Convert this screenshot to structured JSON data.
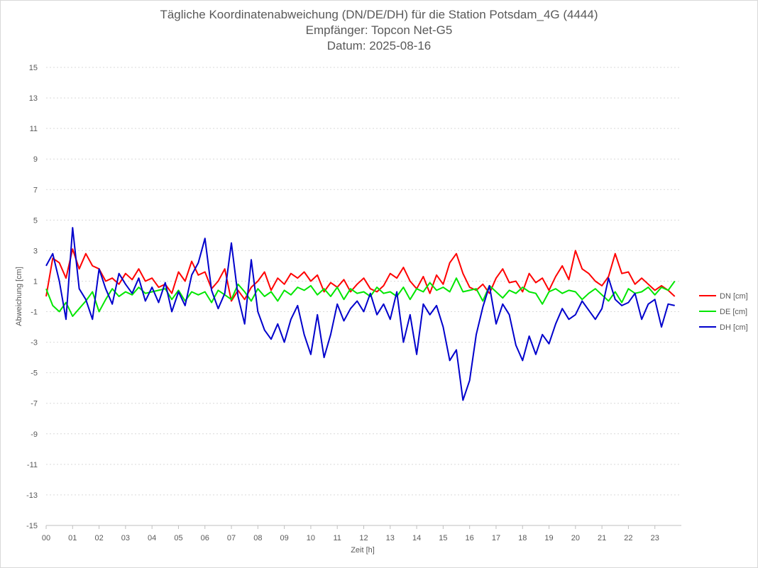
{
  "chart_data": {
    "type": "line",
    "title": [
      "Tägliche Koordinatenabweichung (DN/DE/DH) für die Station Potsdam_4G (4444)",
      "Empfänger: Topcon Net-G5",
      "Datum: 2025-08-16"
    ],
    "xlabel": "Zeit [h]",
    "ylabel": "Abweichung [cm]",
    "ylim": [
      -15,
      15
    ],
    "xlim": [
      0,
      24
    ],
    "x_ticks": [
      "00",
      "01",
      "02",
      "03",
      "04",
      "05",
      "06",
      "07",
      "08",
      "09",
      "10",
      "11",
      "12",
      "13",
      "14",
      "15",
      "16",
      "17",
      "18",
      "19",
      "20",
      "21",
      "22",
      "23"
    ],
    "y_ticks": [
      "15",
      "13",
      "11",
      "9",
      "7",
      "5",
      "3",
      "1",
      "-1",
      "-3",
      "-5",
      "-7",
      "-9",
      "-11",
      "-13",
      "-15"
    ],
    "grid": "horizontal dotted",
    "legend_position": "right",
    "series": [
      {
        "name": "DN [cm]",
        "color": "#ff0000",
        "x": [
          0,
          0.25,
          0.5,
          0.75,
          1,
          1.25,
          1.5,
          1.75,
          2,
          2.25,
          2.5,
          2.75,
          3,
          3.25,
          3.5,
          3.75,
          4,
          4.25,
          4.5,
          4.75,
          5,
          5.25,
          5.5,
          5.75,
          6,
          6.25,
          6.5,
          6.75,
          7,
          7.25,
          7.5,
          7.75,
          8,
          8.25,
          8.5,
          8.75,
          9,
          9.25,
          9.5,
          9.75,
          10,
          10.25,
          10.5,
          10.75,
          11,
          11.25,
          11.5,
          11.75,
          12,
          12.25,
          12.5,
          12.75,
          13,
          13.25,
          13.5,
          13.75,
          14,
          14.25,
          14.5,
          14.75,
          15,
          15.25,
          15.5,
          15.75,
          16,
          16.25,
          16.5,
          16.75,
          17,
          17.25,
          17.5,
          17.75,
          18,
          18.25,
          18.5,
          18.75,
          19,
          19.25,
          19.5,
          19.75,
          20,
          20.25,
          20.5,
          20.75,
          21,
          21.25,
          21.5,
          21.75,
          22,
          22.25,
          22.5,
          22.75,
          23,
          23.25,
          23.5,
          23.75
        ],
        "values": [
          0,
          2.5,
          2.2,
          1.2,
          3.1,
          1.8,
          2.8,
          2.0,
          1.8,
          1.0,
          1.2,
          0.8,
          1.5,
          1.1,
          1.8,
          1.0,
          1.2,
          0.6,
          0.8,
          0.2,
          1.6,
          1.0,
          2.3,
          1.4,
          1.6,
          0.5,
          1.0,
          1.8,
          -0.3,
          0.4,
          -0.2,
          0.6,
          1.0,
          1.6,
          0.4,
          1.2,
          0.8,
          1.5,
          1.2,
          1.6,
          1.0,
          1.4,
          0.3,
          0.9,
          0.6,
          1.1,
          0.3,
          0.8,
          1.2,
          0.5,
          0.3,
          0.7,
          1.5,
          1.2,
          1.9,
          1.0,
          0.5,
          1.3,
          0.2,
          1.4,
          0.8,
          2.2,
          2.8,
          1.5,
          0.6,
          0.4,
          0.8,
          0.2,
          1.2,
          1.8,
          0.9,
          1.0,
          0.3,
          1.5,
          0.9,
          1.2,
          0.4,
          1.3,
          2.0,
          1.1,
          3.0,
          1.8,
          1.5,
          1.0,
          0.7,
          1.3,
          2.8,
          1.5,
          1.6,
          0.8,
          1.2,
          0.8,
          0.4,
          0.7,
          0.4,
          0.0
        ]
      },
      {
        "name": "DE [cm]",
        "color": "#00e600",
        "x": [
          0,
          0.25,
          0.5,
          0.75,
          1,
          1.25,
          1.5,
          1.75,
          2,
          2.25,
          2.5,
          2.75,
          3,
          3.25,
          3.5,
          3.75,
          4,
          4.25,
          4.5,
          4.75,
          5,
          5.25,
          5.5,
          5.75,
          6,
          6.25,
          6.5,
          6.75,
          7,
          7.25,
          7.5,
          7.75,
          8,
          8.25,
          8.5,
          8.75,
          9,
          9.25,
          9.5,
          9.75,
          10,
          10.25,
          10.5,
          10.75,
          11,
          11.25,
          11.5,
          11.75,
          12,
          12.25,
          12.5,
          12.75,
          13,
          13.25,
          13.5,
          13.75,
          14,
          14.25,
          14.5,
          14.75,
          15,
          15.25,
          15.5,
          15.75,
          16,
          16.25,
          16.5,
          16.75,
          17,
          17.25,
          17.5,
          17.75,
          18,
          18.25,
          18.5,
          18.75,
          19,
          19.25,
          19.5,
          19.75,
          20,
          20.25,
          20.5,
          20.75,
          21,
          21.25,
          21.5,
          21.75,
          22,
          22.25,
          22.5,
          22.75,
          23,
          23.25,
          23.5,
          23.75
        ],
        "values": [
          0.5,
          -0.6,
          -1.0,
          -0.4,
          -1.3,
          -0.8,
          -0.3,
          0.3,
          -1.0,
          -0.2,
          0.5,
          0.0,
          0.3,
          0.1,
          0.6,
          0.2,
          0.3,
          0.4,
          0.5,
          -0.2,
          0.4,
          -0.3,
          0.3,
          0.1,
          0.3,
          -0.4,
          0.4,
          0.1,
          -0.2,
          0.8,
          0.3,
          -0.3,
          0.5,
          0.0,
          0.3,
          -0.3,
          0.4,
          0.1,
          0.6,
          0.4,
          0.7,
          0.1,
          0.5,
          0.0,
          0.6,
          -0.2,
          0.5,
          0.2,
          0.3,
          0.0,
          0.6,
          0.2,
          0.3,
          0.0,
          0.6,
          -0.2,
          0.5,
          0.3,
          0.9,
          0.4,
          0.6,
          0.3,
          1.2,
          0.3,
          0.4,
          0.5,
          -0.3,
          0.7,
          0.3,
          -0.1,
          0.4,
          0.2,
          0.6,
          0.3,
          0.2,
          -0.5,
          0.3,
          0.5,
          0.2,
          0.4,
          0.3,
          -0.2,
          0.2,
          0.5,
          0.1,
          -0.3,
          0.3,
          -0.4,
          0.5,
          0.2,
          0.3,
          0.6,
          0.1,
          0.6,
          0.4,
          1.0
        ]
      },
      {
        "name": "DH [cm]",
        "color": "#0000cc",
        "x": [
          0,
          0.25,
          0.5,
          0.75,
          1,
          1.25,
          1.5,
          1.75,
          2,
          2.25,
          2.5,
          2.75,
          3,
          3.25,
          3.5,
          3.75,
          4,
          4.25,
          4.5,
          4.75,
          5,
          5.25,
          5.5,
          5.75,
          6,
          6.25,
          6.5,
          6.75,
          7,
          7.25,
          7.5,
          7.75,
          8,
          8.25,
          8.5,
          8.75,
          9,
          9.25,
          9.5,
          9.75,
          10,
          10.25,
          10.5,
          10.75,
          11,
          11.25,
          11.5,
          11.75,
          12,
          12.25,
          12.5,
          12.75,
          13,
          13.25,
          13.5,
          13.75,
          14,
          14.25,
          14.5,
          14.75,
          15,
          15.25,
          15.5,
          15.75,
          16,
          16.25,
          16.5,
          16.75,
          17,
          17.25,
          17.5,
          17.75,
          18,
          18.25,
          18.5,
          18.75,
          19,
          19.25,
          19.5,
          19.75,
          20,
          20.25,
          20.5,
          20.75,
          21,
          21.25,
          21.5,
          21.75,
          22,
          22.25,
          22.5,
          22.75,
          23,
          23.25,
          23.5,
          23.75
        ],
        "values": [
          2.0,
          2.8,
          1.0,
          -1.5,
          4.5,
          0.5,
          -0.2,
          -1.5,
          1.8,
          0.5,
          -0.5,
          1.5,
          0.8,
          0.2,
          1.2,
          -0.3,
          0.6,
          -0.4,
          0.9,
          -1.0,
          0.3,
          -0.6,
          1.4,
          2.2,
          3.8,
          0.4,
          -0.8,
          0.2,
          3.5,
          0.0,
          -1.8,
          2.4,
          -1.0,
          -2.2,
          -2.8,
          -1.8,
          -3.0,
          -1.5,
          -0.6,
          -2.5,
          -3.8,
          -1.2,
          -4.0,
          -2.5,
          -0.5,
          -1.6,
          -0.8,
          -0.3,
          -1.0,
          0.2,
          -1.2,
          -0.5,
          -1.5,
          0.3,
          -3.0,
          -1.2,
          -3.8,
          -0.5,
          -1.2,
          -0.6,
          -2.0,
          -4.2,
          -3.5,
          -6.8,
          -5.5,
          -2.5,
          -0.7,
          0.7,
          -1.8,
          -0.5,
          -1.2,
          -3.2,
          -4.2,
          -2.6,
          -3.8,
          -2.5,
          -3.1,
          -1.8,
          -0.8,
          -1.5,
          -1.2,
          -0.3,
          -0.9,
          -1.5,
          -0.8,
          1.2,
          -0.2,
          -0.6,
          -0.4,
          0.2,
          -1.5,
          -0.5,
          -0.2,
          -2.0,
          -0.5,
          -0.6
        ]
      }
    ]
  }
}
